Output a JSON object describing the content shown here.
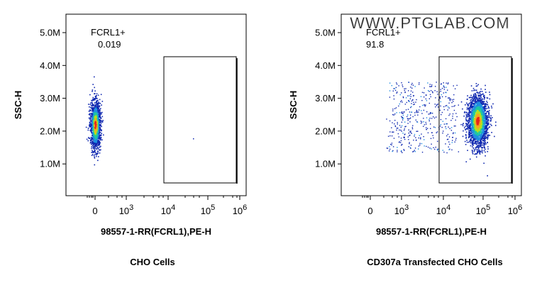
{
  "watermark": "WWW.PTGLAB.COM",
  "panels": [
    {
      "y_label": "SSC-H",
      "y_ticks": [
        "5.0M",
        "4.0M",
        "3.0M",
        "2.0M",
        "1.0M"
      ],
      "x_ticks": [
        {
          "base": "0"
        },
        {
          "base": "10",
          "exp": "3"
        },
        {
          "base": "10",
          "exp": "4"
        },
        {
          "base": "10",
          "exp": "5"
        },
        {
          "base": "10",
          "exp": "6"
        }
      ],
      "x_label": "98557-1-RR(FCRL1),PE-H",
      "gate": {
        "name": "FCRL1+",
        "value": "0.019"
      },
      "caption": "CHO Cells"
    },
    {
      "y_label": "SSC-H",
      "y_ticks": [
        "5.0M",
        "4.0M",
        "3.0M",
        "2.0M",
        "1.0M"
      ],
      "x_ticks": [
        {
          "base": "0"
        },
        {
          "base": "10",
          "exp": "3"
        },
        {
          "base": "10",
          "exp": "4"
        },
        {
          "base": "10",
          "exp": "5"
        },
        {
          "base": "10",
          "exp": "6"
        }
      ],
      "x_label": "98557-1-RR(FCRL1),PE-H",
      "gate": {
        "name": "FCRL1+",
        "value": "91.8"
      },
      "caption": "CD307a Transfected CHO Cells"
    }
  ]
}
